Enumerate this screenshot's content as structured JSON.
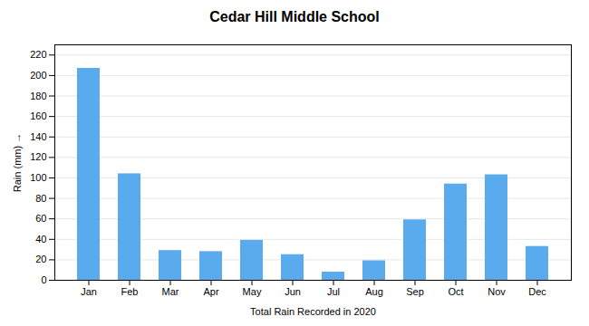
{
  "chart_data": {
    "type": "bar",
    "title": "Cedar Hill Middle School",
    "xlabel": "Total Rain Recorded in 2020",
    "ylabel": "Rain (mm)",
    "categories": [
      "Jan",
      "Feb",
      "Mar",
      "Apr",
      "May",
      "Jun",
      "Jul",
      "Aug",
      "Sep",
      "Oct",
      "Nov",
      "Dec"
    ],
    "values": [
      207,
      104,
      29,
      28,
      39,
      25,
      8,
      19,
      59,
      94,
      103,
      33
    ],
    "color": "#5aaaee",
    "ylim": [
      0,
      230
    ],
    "yticks": [
      0,
      20,
      40,
      60,
      80,
      100,
      120,
      140,
      160,
      180,
      200,
      220
    ],
    "grid": true
  }
}
